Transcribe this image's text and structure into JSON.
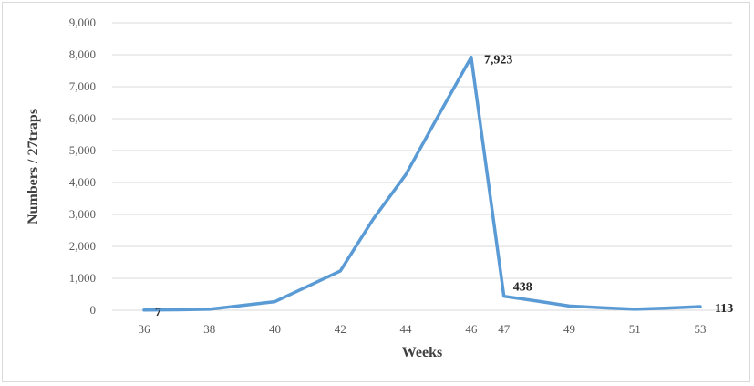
{
  "chart_data": {
    "type": "line",
    "categories": [
      "36",
      "37",
      "38",
      "39",
      "40",
      "41",
      "42",
      "43",
      "44",
      "45",
      "46",
      "47",
      "48",
      "49",
      "50",
      "51",
      "52",
      "53"
    ],
    "x_tick_labels": [
      "36",
      "38",
      "40",
      "42",
      "44",
      "46",
      "47",
      "49",
      "51",
      "53"
    ],
    "values": [
      7,
      15,
      30,
      150,
      270,
      750,
      1230,
      2850,
      4250,
      6100,
      7923,
      438,
      290,
      130,
      80,
      30,
      70,
      113
    ],
    "data_labels": [
      {
        "category": "36",
        "text": "7"
      },
      {
        "category": "46",
        "text": "7,923"
      },
      {
        "category": "47",
        "text": "438"
      },
      {
        "category": "53",
        "text": "113"
      }
    ],
    "xlabel": "Weeks",
    "ylabel": "Numbers / 27traps",
    "ylim": [
      0,
      9000
    ],
    "yticks": [
      "0",
      "1,000",
      "2,000",
      "3,000",
      "4,000",
      "5,000",
      "6,000",
      "7,000",
      "8,000",
      "9,000"
    ],
    "grid": true,
    "legend": "none",
    "line_color": "#5b9bd5"
  }
}
